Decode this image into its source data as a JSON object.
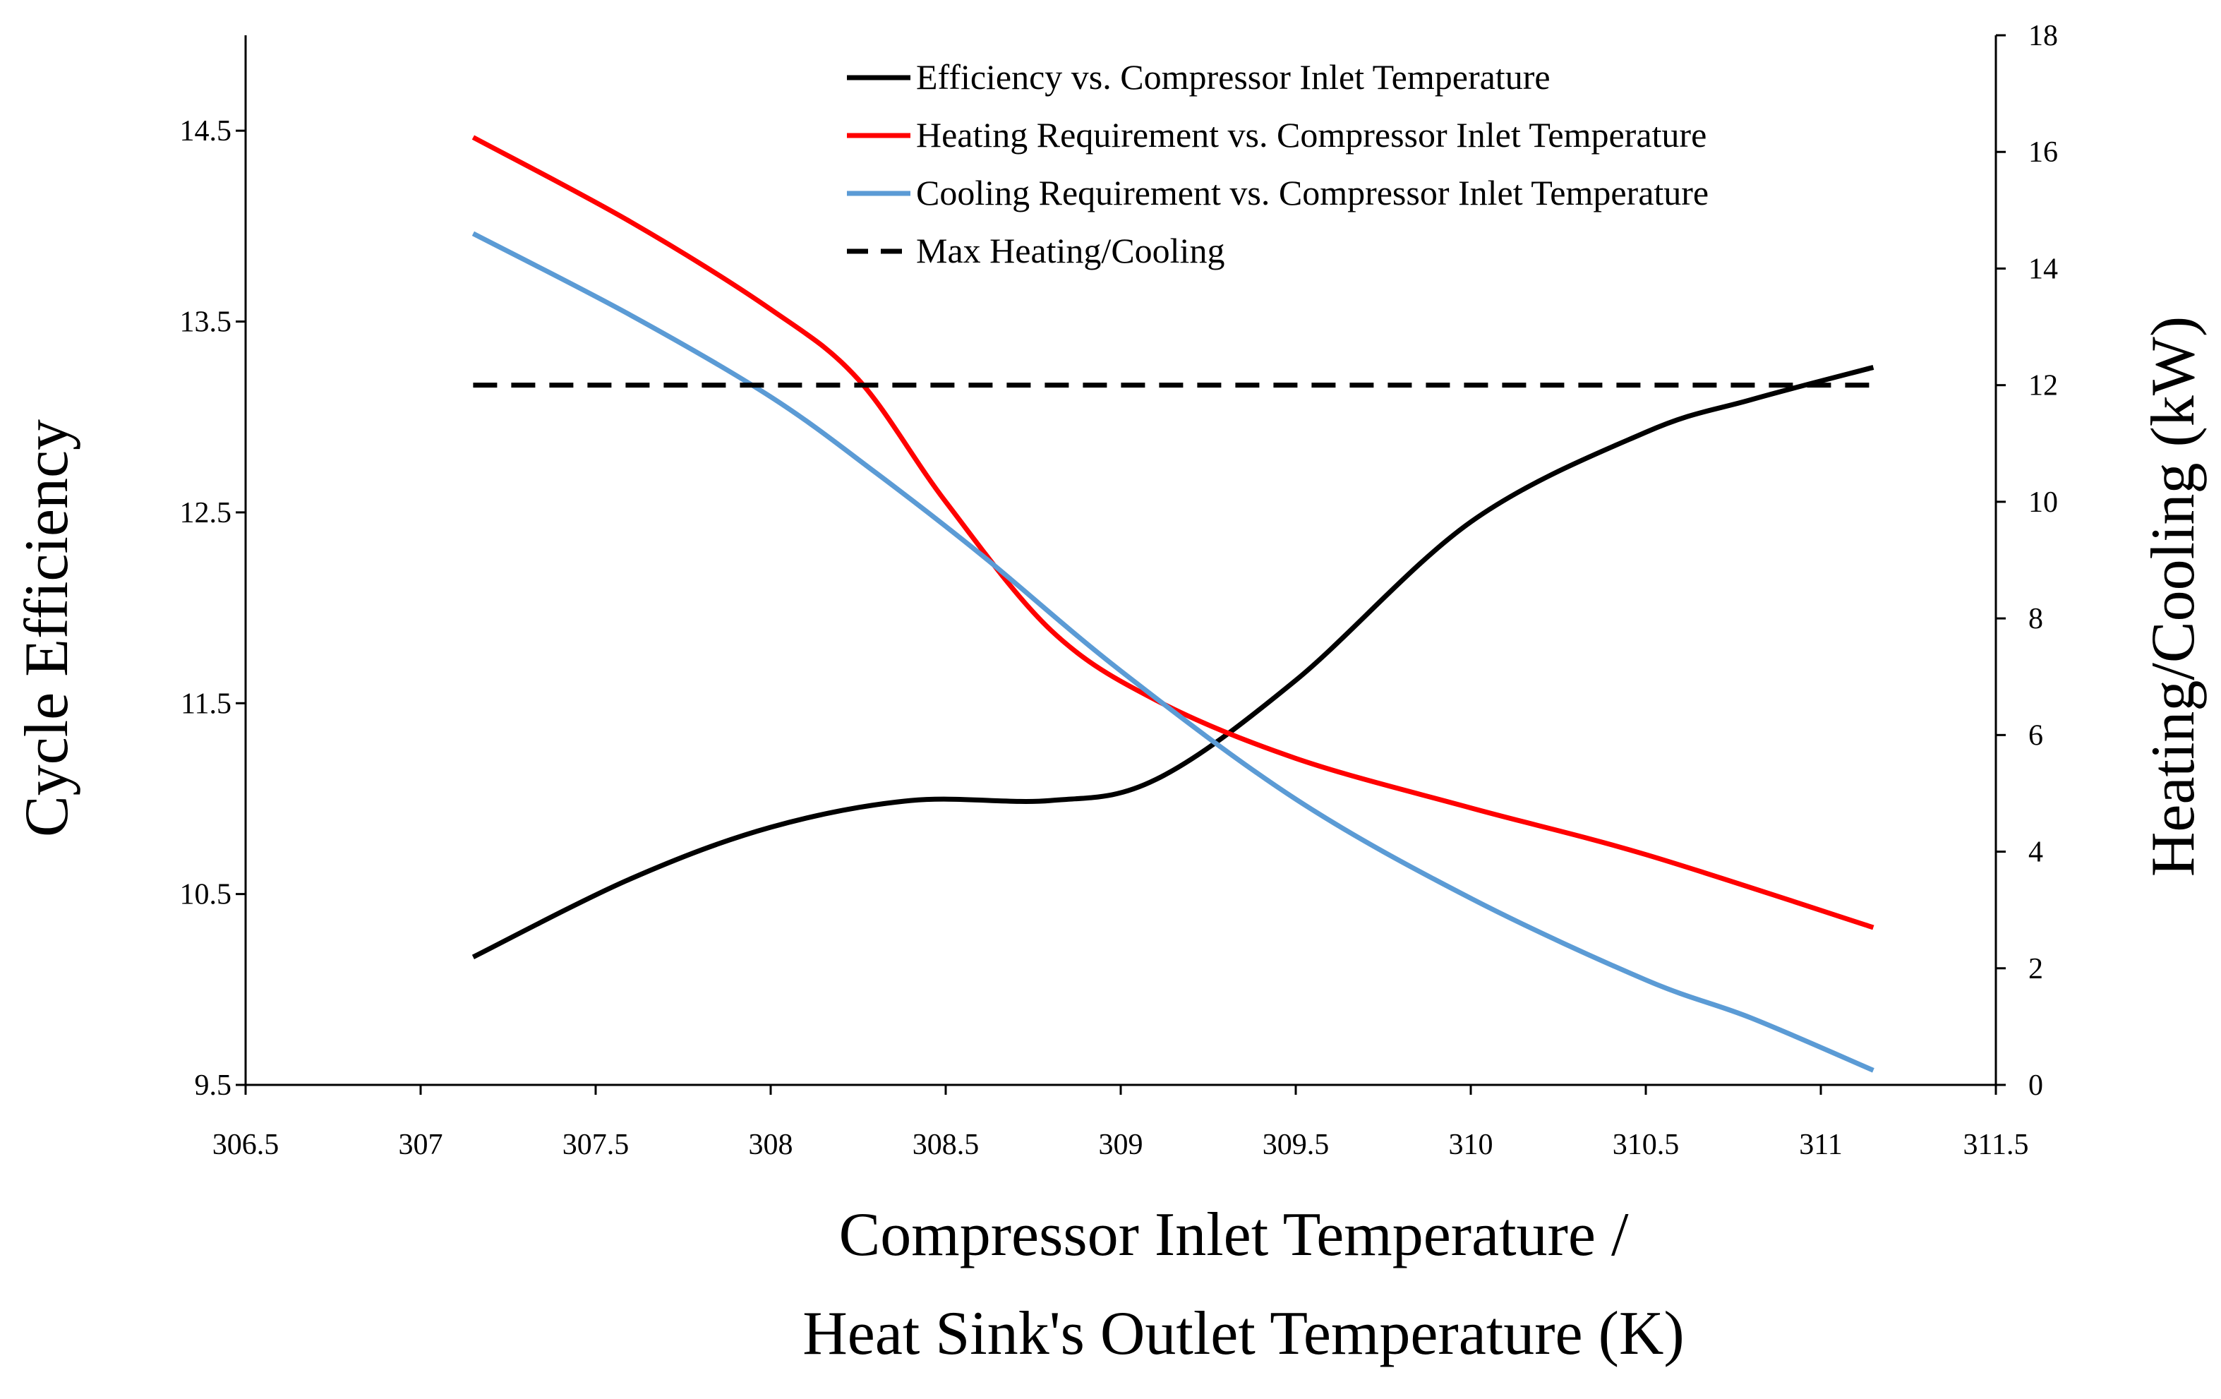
{
  "chart_data": {
    "type": "line",
    "title": "",
    "xlabel_lines": [
      "Compressor Inlet Temperature /",
      "Heat Sink's Outlet Temperature (K)"
    ],
    "ylabel_left": "Cycle Efficiency",
    "ylabel_right": "Heating/Cooling (kW)",
    "xlim": [
      306.5,
      311.5
    ],
    "xticks": [
      306.5,
      307,
      307.5,
      308,
      308.5,
      309,
      309.5,
      310,
      310.5,
      311,
      311.5
    ],
    "xtick_labels": [
      "306.5",
      "307",
      "307.5",
      "308",
      "308.5",
      "309",
      "309.5",
      "310",
      "310.5",
      "311",
      "311.5"
    ],
    "ylim_left": [
      9.5,
      15
    ],
    "yticks_left": [
      9.5,
      10.5,
      11.5,
      12.5,
      13.5,
      14.5
    ],
    "ytick_labels_left": [
      "9.5",
      "10.5",
      "11.5",
      "12.5",
      "13.5",
      "14.5"
    ],
    "ylim_right": [
      0,
      18
    ],
    "yticks_right": [
      0,
      2,
      4,
      6,
      8,
      10,
      12,
      14,
      16,
      18
    ],
    "ytick_labels_right": [
      "0",
      "2",
      "4",
      "6",
      "8",
      "10",
      "12",
      "14",
      "16",
      "18"
    ],
    "grid": false,
    "legend_position": "top-right",
    "series": [
      {
        "name": "Efficiency vs. Compressor Inlet Temperature",
        "axis": "left",
        "color": "#000000",
        "dash": "solid",
        "x": [
          307.15,
          307.6,
          308.0,
          308.4,
          308.8,
          309.1,
          309.5,
          310.0,
          310.5,
          310.8,
          311.15
        ],
        "y": [
          10.17,
          10.58,
          10.85,
          10.99,
          10.99,
          11.1,
          11.62,
          12.45,
          12.92,
          13.09,
          13.26
        ]
      },
      {
        "name": "Heating Requirement vs. Compressor Inlet Temperature",
        "axis": "right",
        "color": "#ff0000",
        "dash": "solid",
        "x": [
          307.15,
          307.6,
          308.0,
          308.25,
          308.5,
          308.8,
          309.1,
          309.5,
          310.0,
          310.5,
          311.15
        ],
        "y": [
          16.25,
          14.8,
          13.3,
          12.1,
          10.0,
          7.8,
          6.6,
          5.6,
          4.75,
          3.95,
          2.7
        ]
      },
      {
        "name": "Cooling Requirement vs. Compressor Inlet Temperature",
        "axis": "right",
        "color": "#5b9bd5",
        "dash": "solid",
        "x": [
          307.15,
          307.6,
          308.0,
          308.3,
          308.6,
          309.0,
          309.5,
          310.0,
          310.5,
          310.8,
          311.15
        ],
        "y": [
          14.6,
          13.2,
          11.8,
          10.5,
          9.1,
          7.1,
          4.9,
          3.2,
          1.8,
          1.15,
          0.25
        ]
      },
      {
        "name": "Max Heating/Cooling",
        "axis": "right",
        "color": "#000000",
        "dash": "dashed",
        "x": [
          307.15,
          311.15
        ],
        "y": [
          12,
          12
        ]
      }
    ]
  }
}
